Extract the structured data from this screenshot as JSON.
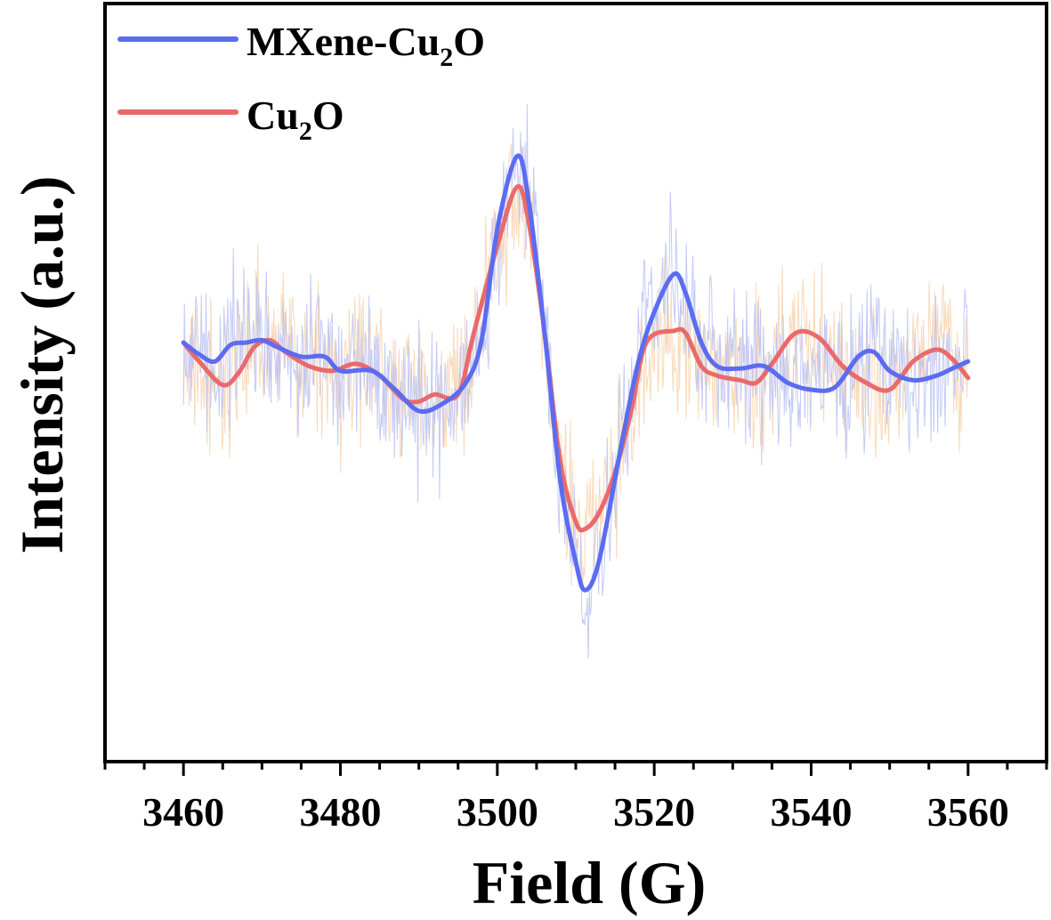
{
  "chart_data": {
    "type": "line",
    "xlabel": "Field (G)",
    "ylabel": "Intensity (a.u.)",
    "xlim": [
      3450,
      3570
    ],
    "ylim": [
      -1.0,
      1.0
    ],
    "x_ticks": [
      3460,
      3480,
      3500,
      3520,
      3540,
      3560
    ],
    "x_tick_labels": [
      "3460",
      "3480",
      "3500",
      "3520",
      "3540",
      "3560"
    ],
    "y_ticks_shown": false,
    "legend_position": "top-left",
    "series": [
      {
        "name": "MXene-Cu2O",
        "legend_main": "MXene-Cu",
        "legend_sub": "2",
        "legend_tail": "O",
        "color": "#5b6cf0",
        "noise_color": "#b8c1f5",
        "x": [
          3460,
          3462,
          3464,
          3466,
          3468,
          3470,
          3472,
          3475,
          3478,
          3480,
          3484,
          3487,
          3490,
          3493,
          3496,
          3498,
          3500,
          3502.5,
          3504,
          3506,
          3508,
          3510,
          3511.2,
          3513,
          3516,
          3518,
          3520,
          3522.5,
          3524,
          3526,
          3528,
          3531,
          3534,
          3537,
          3540,
          3543,
          3546,
          3548,
          3550,
          3553,
          3556,
          3558,
          3560
        ],
        "y": [
          0.0,
          -0.05,
          -0.08,
          -0.01,
          0.0,
          0.01,
          -0.02,
          -0.06,
          -0.06,
          -0.12,
          -0.12,
          -0.2,
          -0.29,
          -0.26,
          -0.17,
          0.01,
          0.48,
          0.79,
          0.6,
          0.05,
          -0.58,
          -0.93,
          -1.05,
          -0.92,
          -0.4,
          -0.08,
          0.13,
          0.29,
          0.21,
          0.0,
          -0.1,
          -0.11,
          -0.1,
          -0.17,
          -0.2,
          -0.19,
          -0.06,
          -0.04,
          -0.12,
          -0.16,
          -0.14,
          -0.11,
          -0.08
        ]
      },
      {
        "name": "Cu2O",
        "legend_main": "Cu",
        "legend_sub": "2",
        "legend_tail": "O",
        "color": "#ea6a6a",
        "noise_color": "#f7d2ad",
        "x": [
          3460,
          3462,
          3465,
          3467,
          3469,
          3471,
          3473,
          3476,
          3479,
          3482,
          3485,
          3488,
          3490,
          3492,
          3495,
          3497,
          3500,
          3502.5,
          3504,
          3506,
          3508,
          3510,
          3511.2,
          3513,
          3515,
          3517,
          3519,
          3522.5,
          3524,
          3526,
          3528,
          3531,
          3533,
          3535,
          3538,
          3541,
          3544,
          3547,
          3550,
          3553,
          3556,
          3558,
          3560
        ],
        "y": [
          0.0,
          -0.08,
          -0.18,
          -0.13,
          -0.02,
          0.01,
          -0.04,
          -0.1,
          -0.12,
          -0.09,
          -0.14,
          -0.24,
          -0.25,
          -0.22,
          -0.22,
          0.04,
          0.41,
          0.66,
          0.51,
          0.05,
          -0.5,
          -0.76,
          -0.79,
          -0.72,
          -0.55,
          -0.3,
          0.0,
          0.05,
          0.04,
          -0.1,
          -0.14,
          -0.16,
          -0.17,
          -0.09,
          0.04,
          0.02,
          -0.1,
          -0.17,
          -0.2,
          -0.08,
          -0.03,
          -0.07,
          -0.15
        ]
      }
    ]
  }
}
